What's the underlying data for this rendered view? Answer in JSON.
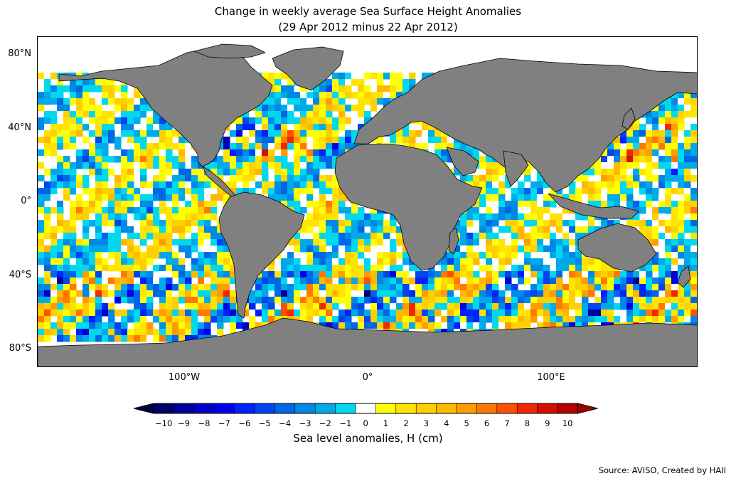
{
  "title_line1": "Change in weekly average Sea Surface Height Anomalies",
  "title_line2": "(29 Apr 2012 minus 22 Apr 2012)",
  "lat_labels": [
    "80°N",
    "40°N",
    "0°",
    "40°S",
    "80°S"
  ],
  "lon_labels": [
    "100°W",
    "0°",
    "100°E"
  ],
  "colorbar": {
    "title": "Sea level anomalies, H (cm)",
    "tick_labels": [
      "−10",
      "−9",
      "−8",
      "−7",
      "−6",
      "−5",
      "−4",
      "−3",
      "−2",
      "−1",
      "0",
      "1",
      "2",
      "3",
      "4",
      "5",
      "6",
      "7",
      "8",
      "9",
      "10"
    ],
    "colors": [
      "#000066",
      "#00009c",
      "#0000c8",
      "#0000ea",
      "#0022ff",
      "#0044f2",
      "#0066e8",
      "#0088e6",
      "#00aae8",
      "#00d8f0",
      "#ffffff",
      "#ffff00",
      "#ffe400",
      "#ffd000",
      "#ffb800",
      "#ff9c00",
      "#ff7800",
      "#ff5000",
      "#f02800",
      "#d41000",
      "#b40000"
    ],
    "under_color": "#000044",
    "over_color": "#a00000"
  },
  "land_color": "#808080",
  "source": "Source: AVISO, Created by HAII"
}
